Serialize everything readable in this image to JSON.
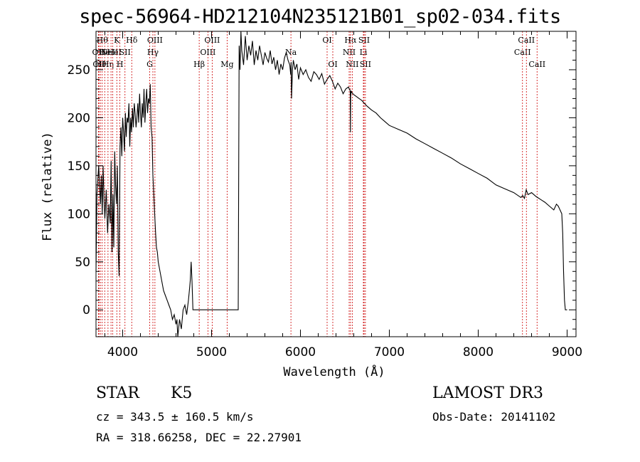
{
  "chart_data": {
    "type": "line",
    "title": "spec-56964-HD212104N235121B01_sp02-034.fits",
    "xlabel": "Wavelength (Å)",
    "ylabel": "Flux (relative)",
    "xlim": [
      3700,
      9100
    ],
    "ylim": [
      -28,
      290
    ],
    "xticks": [
      4000,
      5000,
      6000,
      7000,
      8000,
      9000
    ],
    "yticks": [
      0,
      50,
      100,
      150,
      200,
      250
    ],
    "grid": false,
    "series": [
      {
        "name": "spectrum",
        "x": [
          3700,
          3710,
          3720,
          3730,
          3740,
          3750,
          3760,
          3770,
          3780,
          3790,
          3800,
          3815,
          3830,
          3845,
          3860,
          3870,
          3880,
          3890,
          3900,
          3910,
          3920,
          3930,
          3940,
          3950,
          3960,
          3970,
          3980,
          3990,
          4000,
          4010,
          4020,
          4030,
          4040,
          4050,
          4060,
          4070,
          4080,
          4090,
          4100,
          4110,
          4120,
          4130,
          4140,
          4150,
          4160,
          4170,
          4180,
          4190,
          4200,
          4210,
          4220,
          4230,
          4240,
          4250,
          4260,
          4270,
          4280,
          4290,
          4300,
          4310,
          4320,
          4330,
          4340,
          4350,
          4360,
          4370,
          4380,
          4390,
          4400,
          4420,
          4440,
          4460,
          4480,
          4500,
          4520,
          4540,
          4560,
          4580,
          4600,
          4610,
          4620,
          4640,
          4660,
          4680,
          4700,
          4720,
          4740,
          4750,
          4760,
          4770,
          4780,
          4790,
          5200,
          5290,
          5300,
          5310,
          5320,
          5330,
          5340,
          5360,
          5380,
          5400,
          5420,
          5440,
          5460,
          5480,
          5500,
          5520,
          5540,
          5560,
          5580,
          5600,
          5620,
          5640,
          5660,
          5680,
          5700,
          5720,
          5740,
          5760,
          5780,
          5800,
          5820,
          5840,
          5860,
          5880,
          5890,
          5895,
          5900,
          5910,
          5920,
          5940,
          5960,
          5980,
          6000,
          6030,
          6060,
          6090,
          6120,
          6150,
          6180,
          6210,
          6240,
          6270,
          6300,
          6330,
          6360,
          6390,
          6420,
          6450,
          6480,
          6510,
          6540,
          6560,
          6562,
          6565,
          6570,
          6580,
          6600,
          6630,
          6660,
          6690,
          6720,
          6750,
          6800,
          6850,
          6900,
          6950,
          7000,
          7100,
          7200,
          7300,
          7400,
          7500,
          7600,
          7700,
          7800,
          7900,
          8000,
          8100,
          8200,
          8300,
          8400,
          8480,
          8500,
          8520,
          8540,
          8560,
          8600,
          8650,
          8700,
          8750,
          8800,
          8850,
          8880,
          8900,
          8910,
          8920,
          8930,
          8940,
          8950,
          8960,
          8970,
          8980,
          8990,
          9000
        ],
        "y": [
          40,
          120,
          135,
          150,
          130,
          110,
          140,
          100,
          150,
          115,
          95,
          125,
          80,
          110,
          90,
          155,
          60,
          120,
          65,
          165,
          130,
          110,
          150,
          60,
          35,
          170,
          190,
          160,
          200,
          185,
          165,
          205,
          180,
          200,
          195,
          215,
          170,
          200,
          185,
          210,
          190,
          215,
          205,
          190,
          200,
          215,
          195,
          225,
          205,
          190,
          215,
          200,
          230,
          195,
          215,
          230,
          205,
          220,
          215,
          235,
          190,
          180,
          140,
          120,
          100,
          80,
          65,
          60,
          50,
          40,
          30,
          20,
          15,
          10,
          5,
          0,
          -10,
          -5,
          -15,
          -10,
          -30,
          -10,
          -20,
          0,
          5,
          -5,
          10,
          20,
          30,
          50,
          30,
          0,
          0,
          0,
          0,
          275,
          250,
          290,
          270,
          255,
          285,
          260,
          275,
          265,
          280,
          255,
          270,
          260,
          275,
          265,
          255,
          268,
          262,
          258,
          270,
          256,
          263,
          250,
          260,
          245,
          256,
          250,
          262,
          268,
          260,
          255,
          245,
          258,
          220,
          250,
          260,
          250,
          256,
          240,
          252,
          245,
          250,
          242,
          238,
          248,
          245,
          240,
          246,
          235,
          240,
          244,
          238,
          230,
          236,
          232,
          225,
          230,
          232,
          228,
          185,
          222,
          228,
          226,
          224,
          222,
          220,
          218,
          215,
          212,
          208,
          205,
          200,
          196,
          192,
          188,
          184,
          178,
          173,
          168,
          163,
          158,
          152,
          147,
          142,
          137,
          130,
          126,
          122,
          117,
          119,
          116,
          125,
          120,
          122,
          118,
          115,
          112,
          108,
          104,
          110,
          108,
          106,
          104,
          102,
          100,
          80,
          40,
          10,
          0,
          0,
          0
        ]
      }
    ],
    "line_markers": [
      {
        "wavelength": 3727,
        "label": "OII",
        "row": 2
      },
      {
        "wavelength": 3734,
        "label": "OII",
        "row": 3
      },
      {
        "wavelength": 3750,
        "label": "Hθ",
        "row": 3
      },
      {
        "wavelength": 3770,
        "label": "Hθ",
        "row": 1
      },
      {
        "wavelength": 3798,
        "label": "He",
        "row": 2
      },
      {
        "wavelength": 3835,
        "label": "Hη",
        "row": 3
      },
      {
        "wavelength": 3869,
        "label": "NeIII",
        "row": 2
      },
      {
        "wavelength": 3889,
        "label": "He",
        "row": 2
      },
      {
        "wavelength": 3934,
        "label": "K",
        "row": 1
      },
      {
        "wavelength": 3969,
        "label": "H",
        "row": 3
      },
      {
        "wavelength": 4026,
        "label": "SII",
        "row": 2
      },
      {
        "wavelength": 4102,
        "label": "Hδ",
        "row": 1
      },
      {
        "wavelength": 4304,
        "label": "G",
        "row": 3
      },
      {
        "wavelength": 4340,
        "label": "Hγ",
        "row": 2
      },
      {
        "wavelength": 4363,
        "label": "OIII",
        "row": 1
      },
      {
        "wavelength": 4861,
        "label": "Hβ",
        "row": 3
      },
      {
        "wavelength": 4959,
        "label": "OIII",
        "row": 2
      },
      {
        "wavelength": 5007,
        "label": "OIII",
        "row": 1
      },
      {
        "wavelength": 5175,
        "label": "Mg",
        "row": 3
      },
      {
        "wavelength": 5893,
        "label": "Na",
        "row": 2
      },
      {
        "wavelength": 6300,
        "label": "OI",
        "row": 1
      },
      {
        "wavelength": 6364,
        "label": "OI",
        "row": 3
      },
      {
        "wavelength": 6548,
        "label": "NII",
        "row": 2
      },
      {
        "wavelength": 6563,
        "label": "Hα",
        "row": 1
      },
      {
        "wavelength": 6583,
        "label": "NII",
        "row": 3
      },
      {
        "wavelength": 6708,
        "label": "Li",
        "row": 2
      },
      {
        "wavelength": 6716,
        "label": "SII",
        "row": 1
      },
      {
        "wavelength": 6731,
        "label": "SII",
        "row": 3
      },
      {
        "wavelength": 8498,
        "label": "CaII",
        "row": 2
      },
      {
        "wavelength": 8542,
        "label": "CaII",
        "row": 1
      },
      {
        "wavelength": 8662,
        "label": "CaII",
        "row": 3
      }
    ]
  },
  "info": {
    "class": "STAR",
    "subclass": "K5",
    "survey": "LAMOST DR3",
    "redshift": "cz = 343.5 ± 160.5 km/s",
    "obs_date": "Obs-Date: 20141102",
    "coords": "RA = 318.66258, DEC =  22.27901"
  },
  "colors": {
    "line_marker": "#cc0000",
    "spectrum": "#000000"
  }
}
